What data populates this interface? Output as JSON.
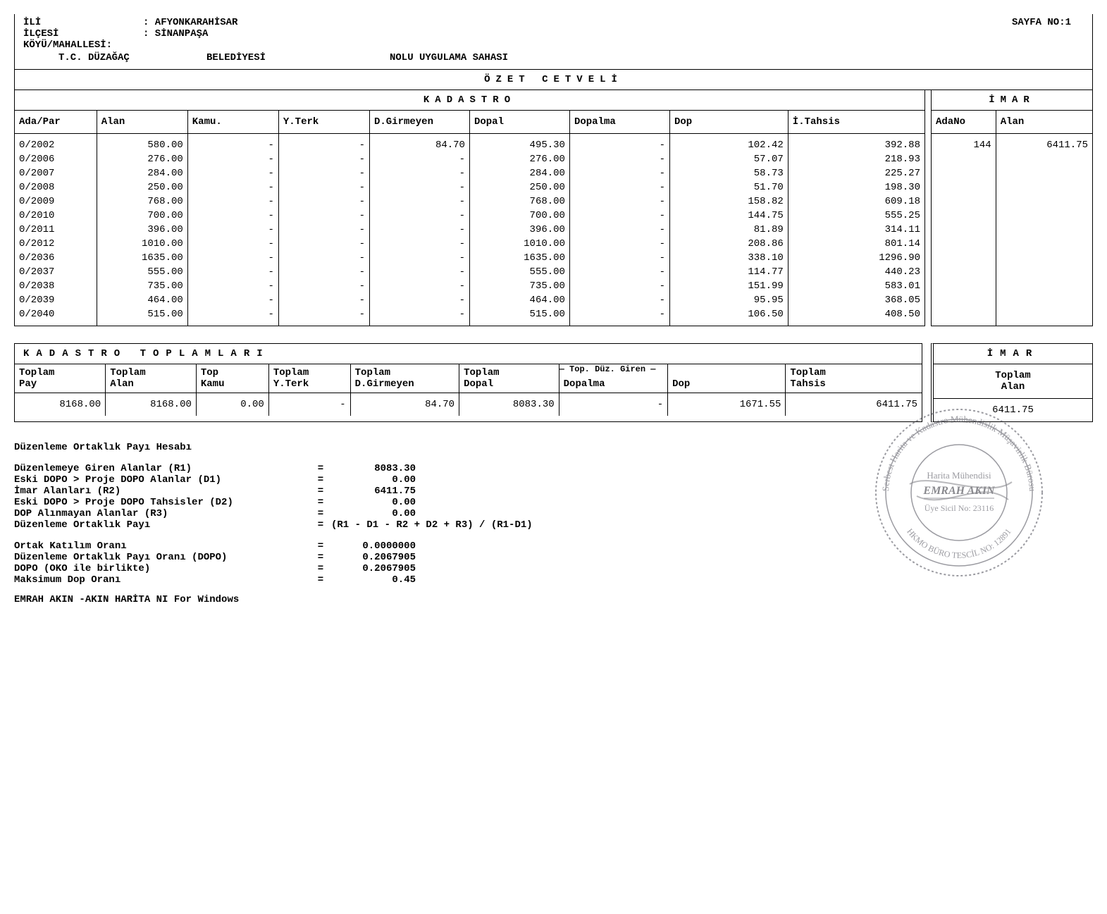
{
  "header": {
    "ili_label": "İLİ",
    "ili_value": ": AFYONKARAHİSAR",
    "ilcesi_label": "İLÇESİ",
    "ilcesi_value": ": SİNANPAŞA",
    "koy_label": "KÖYÜ/MAHALLESİ:",
    "tc": "T.C. DÜZAĞAÇ",
    "belediyesi": "BELEDİYESİ",
    "nolu": "NOLU UYGULAMA SAHASI",
    "page_no": "SAYFA NO:1"
  },
  "titles": {
    "ozet": "ÖZET   CETVELİ",
    "kadastro": "KADASTRO",
    "imar": "İMAR",
    "kadastro_toplamlari": "KADASTRO   TOPLAMLARI",
    "imar2": "İMAR"
  },
  "kadastro": {
    "columns": [
      "Ada/Par",
      "Alan",
      "Kamu.",
      "Y.Terk",
      "D.Girmeyen",
      "Dopal",
      "Dopalma",
      "Dop",
      "İ.Tahsis"
    ],
    "rows": [
      [
        "0/2002",
        "580.00",
        "-",
        "-",
        "84.70",
        "495.30",
        "-",
        "102.42",
        "392.88"
      ],
      [
        "0/2006",
        "276.00",
        "-",
        "-",
        "-",
        "276.00",
        "-",
        "57.07",
        "218.93"
      ],
      [
        "0/2007",
        "284.00",
        "-",
        "-",
        "-",
        "284.00",
        "-",
        "58.73",
        "225.27"
      ],
      [
        "0/2008",
        "250.00",
        "-",
        "-",
        "-",
        "250.00",
        "-",
        "51.70",
        "198.30"
      ],
      [
        "0/2009",
        "768.00",
        "-",
        "-",
        "-",
        "768.00",
        "-",
        "158.82",
        "609.18"
      ],
      [
        "0/2010",
        "700.00",
        "-",
        "-",
        "-",
        "700.00",
        "-",
        "144.75",
        "555.25"
      ],
      [
        "0/2011",
        "396.00",
        "-",
        "-",
        "-",
        "396.00",
        "-",
        "81.89",
        "314.11"
      ],
      [
        "0/2012",
        "1010.00",
        "-",
        "-",
        "-",
        "1010.00",
        "-",
        "208.86",
        "801.14"
      ],
      [
        "0/2036",
        "1635.00",
        "-",
        "-",
        "-",
        "1635.00",
        "-",
        "338.10",
        "1296.90"
      ],
      [
        "0/2037",
        "555.00",
        "-",
        "-",
        "-",
        "555.00",
        "-",
        "114.77",
        "440.23"
      ],
      [
        "0/2038",
        "735.00",
        "-",
        "-",
        "-",
        "735.00",
        "-",
        "151.99",
        "583.01"
      ],
      [
        "0/2039",
        "464.00",
        "-",
        "-",
        "-",
        "464.00",
        "-",
        "95.95",
        "368.05"
      ],
      [
        "0/2040",
        "515.00",
        "-",
        "-",
        "-",
        "515.00",
        "-",
        "106.50",
        "408.50"
      ]
    ]
  },
  "imar": {
    "columns": [
      "AdaNo",
      "Alan"
    ],
    "ada_no": "144",
    "alan": "6411.75"
  },
  "ktotals": {
    "columns": {
      "c1a": "Toplam",
      "c1b": "Pay",
      "c2a": "Toplam",
      "c2b": "Alan",
      "c3a": "Top",
      "c3b": "Kamu",
      "c4a": "Toplam",
      "c4b": "Y.Terk",
      "c5a": "Toplam",
      "c5b": "D.Girmeyen",
      "c6a": "Toplam",
      "c6b": "Dopal",
      "bridge": "— Top. Düz. Giren —",
      "c7b": "Dopalma",
      "c8b": "Dop",
      "c9a": "Toplam",
      "c9b": "Tahsis"
    },
    "row": [
      "8168.00",
      "8168.00",
      "0.00",
      "-",
      "84.70",
      "8083.30",
      "-",
      "1671.55",
      "6411.75"
    ]
  },
  "itotals": {
    "col_a": "Toplam",
    "col_b": "Alan",
    "value": "6411.75"
  },
  "calc": {
    "title": "Düzenleme Ortaklık Payı Hesabı",
    "lines": [
      {
        "label": "Düzenlemeye Giren Alanlar (R1)",
        "val": "8083.30"
      },
      {
        "label": "Eski DOPO > Proje DOPO Alanlar (D1)",
        "val": "0.00"
      },
      {
        "label": "İmar Alanları (R2)",
        "val": "6411.75"
      },
      {
        "label": "Eski DOPO > Proje DOPO Tahsisler (D2)",
        "val": "0.00"
      },
      {
        "label": "DOP Alınmayan Alanlar (R3)",
        "val": "0.00"
      }
    ],
    "formula_label": "Düzenleme Ortaklık Payı",
    "formula": "(R1 - D1 - R2 + D2 + R3) / (R1-D1)",
    "lines2": [
      {
        "label": "Ortak Katılım Oranı",
        "val": "0.0000000"
      },
      {
        "label": "Düzenleme Ortaklık Payı Oranı (DOPO)",
        "val": "0.2067905"
      },
      {
        "label": "DOPO (OKO ile birlikte)",
        "val": "0.2067905"
      },
      {
        "label": "Maksimum Dop Oranı",
        "val": "0.45"
      }
    ],
    "footer": "EMRAH AKIN -AKIN HARİTA  NI For Windows"
  },
  "stamp": {
    "outer_text": "Serbest Harita ve Kadastro Mühendislik Müşavirlik Bürosu",
    "bottom_text": "HKMO BÜRO TESCİL NO: 12891",
    "line1": "Harita Mühendisi",
    "line2": "EMRAH AKIN",
    "line3": "Üye Sicil No: 23116",
    "stroke": "#4a4a55"
  }
}
